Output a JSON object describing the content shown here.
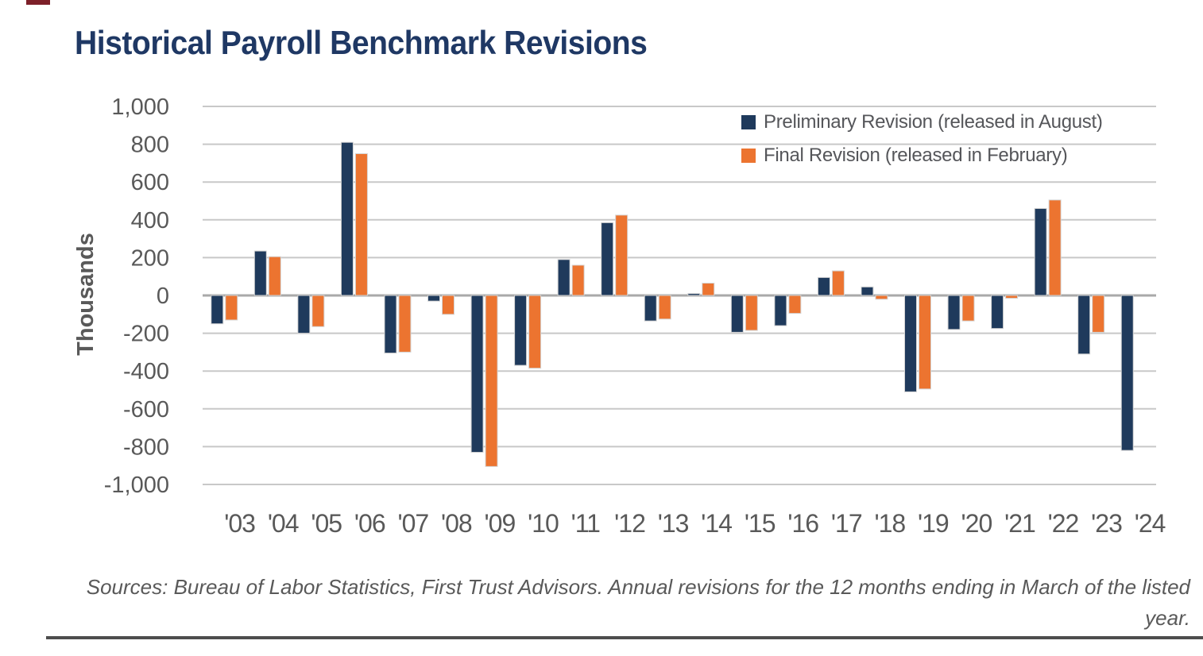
{
  "title": "Historical Payroll Benchmark Revisions",
  "legend": [
    {
      "label": "Preliminary Revision (released in August)",
      "color": "#1f3a5c"
    },
    {
      "label": "Final Revision (released in February)",
      "color": "#ec7430"
    }
  ],
  "y_axis": {
    "label": "Thousands",
    "tick_labels": [
      "1,000",
      "800",
      "600",
      "400",
      "200",
      "0",
      "-200",
      "-400",
      "-600",
      "-800",
      "-1,000"
    ]
  },
  "source": {
    "lines": [
      "Sources: Bureau of Labor Statistics, First Trust Advisors. Annual revisions for the 12 months ending in March of the listed",
      "year."
    ]
  },
  "chart_data": {
    "type": "bar",
    "title": "Historical Payroll Benchmark Revisions",
    "xlabel": "",
    "ylabel": "Thousands",
    "ylim": [
      -1000,
      1000
    ],
    "ytick_step": 200,
    "grid": true,
    "legend_position": "top-right",
    "categories": [
      "'03",
      "'04",
      "'05",
      "'06",
      "'07",
      "'08",
      "'09",
      "'10",
      "'11",
      "'12",
      "'13",
      "'14",
      "'15",
      "'16",
      "'17",
      "'18",
      "'19",
      "'20",
      "'21",
      "'22",
      "'23",
      "'24"
    ],
    "series": [
      {
        "name": "Preliminary Revision (released in August)",
        "color": "#1f3a5c",
        "values": [
          -150,
          235,
          -200,
          810,
          -305,
          -30,
          -830,
          -370,
          190,
          385,
          -135,
          10,
          -195,
          -160,
          95,
          45,
          -510,
          -180,
          -175,
          460,
          -310,
          -820
        ]
      },
      {
        "name": "Final Revision (released in February)",
        "color": "#ec7430",
        "values": [
          -130,
          205,
          -165,
          750,
          -300,
          -100,
          -905,
          -385,
          160,
          425,
          -125,
          65,
          -185,
          -95,
          130,
          -20,
          -495,
          -135,
          -15,
          505,
          -195,
          null
        ]
      }
    ]
  }
}
